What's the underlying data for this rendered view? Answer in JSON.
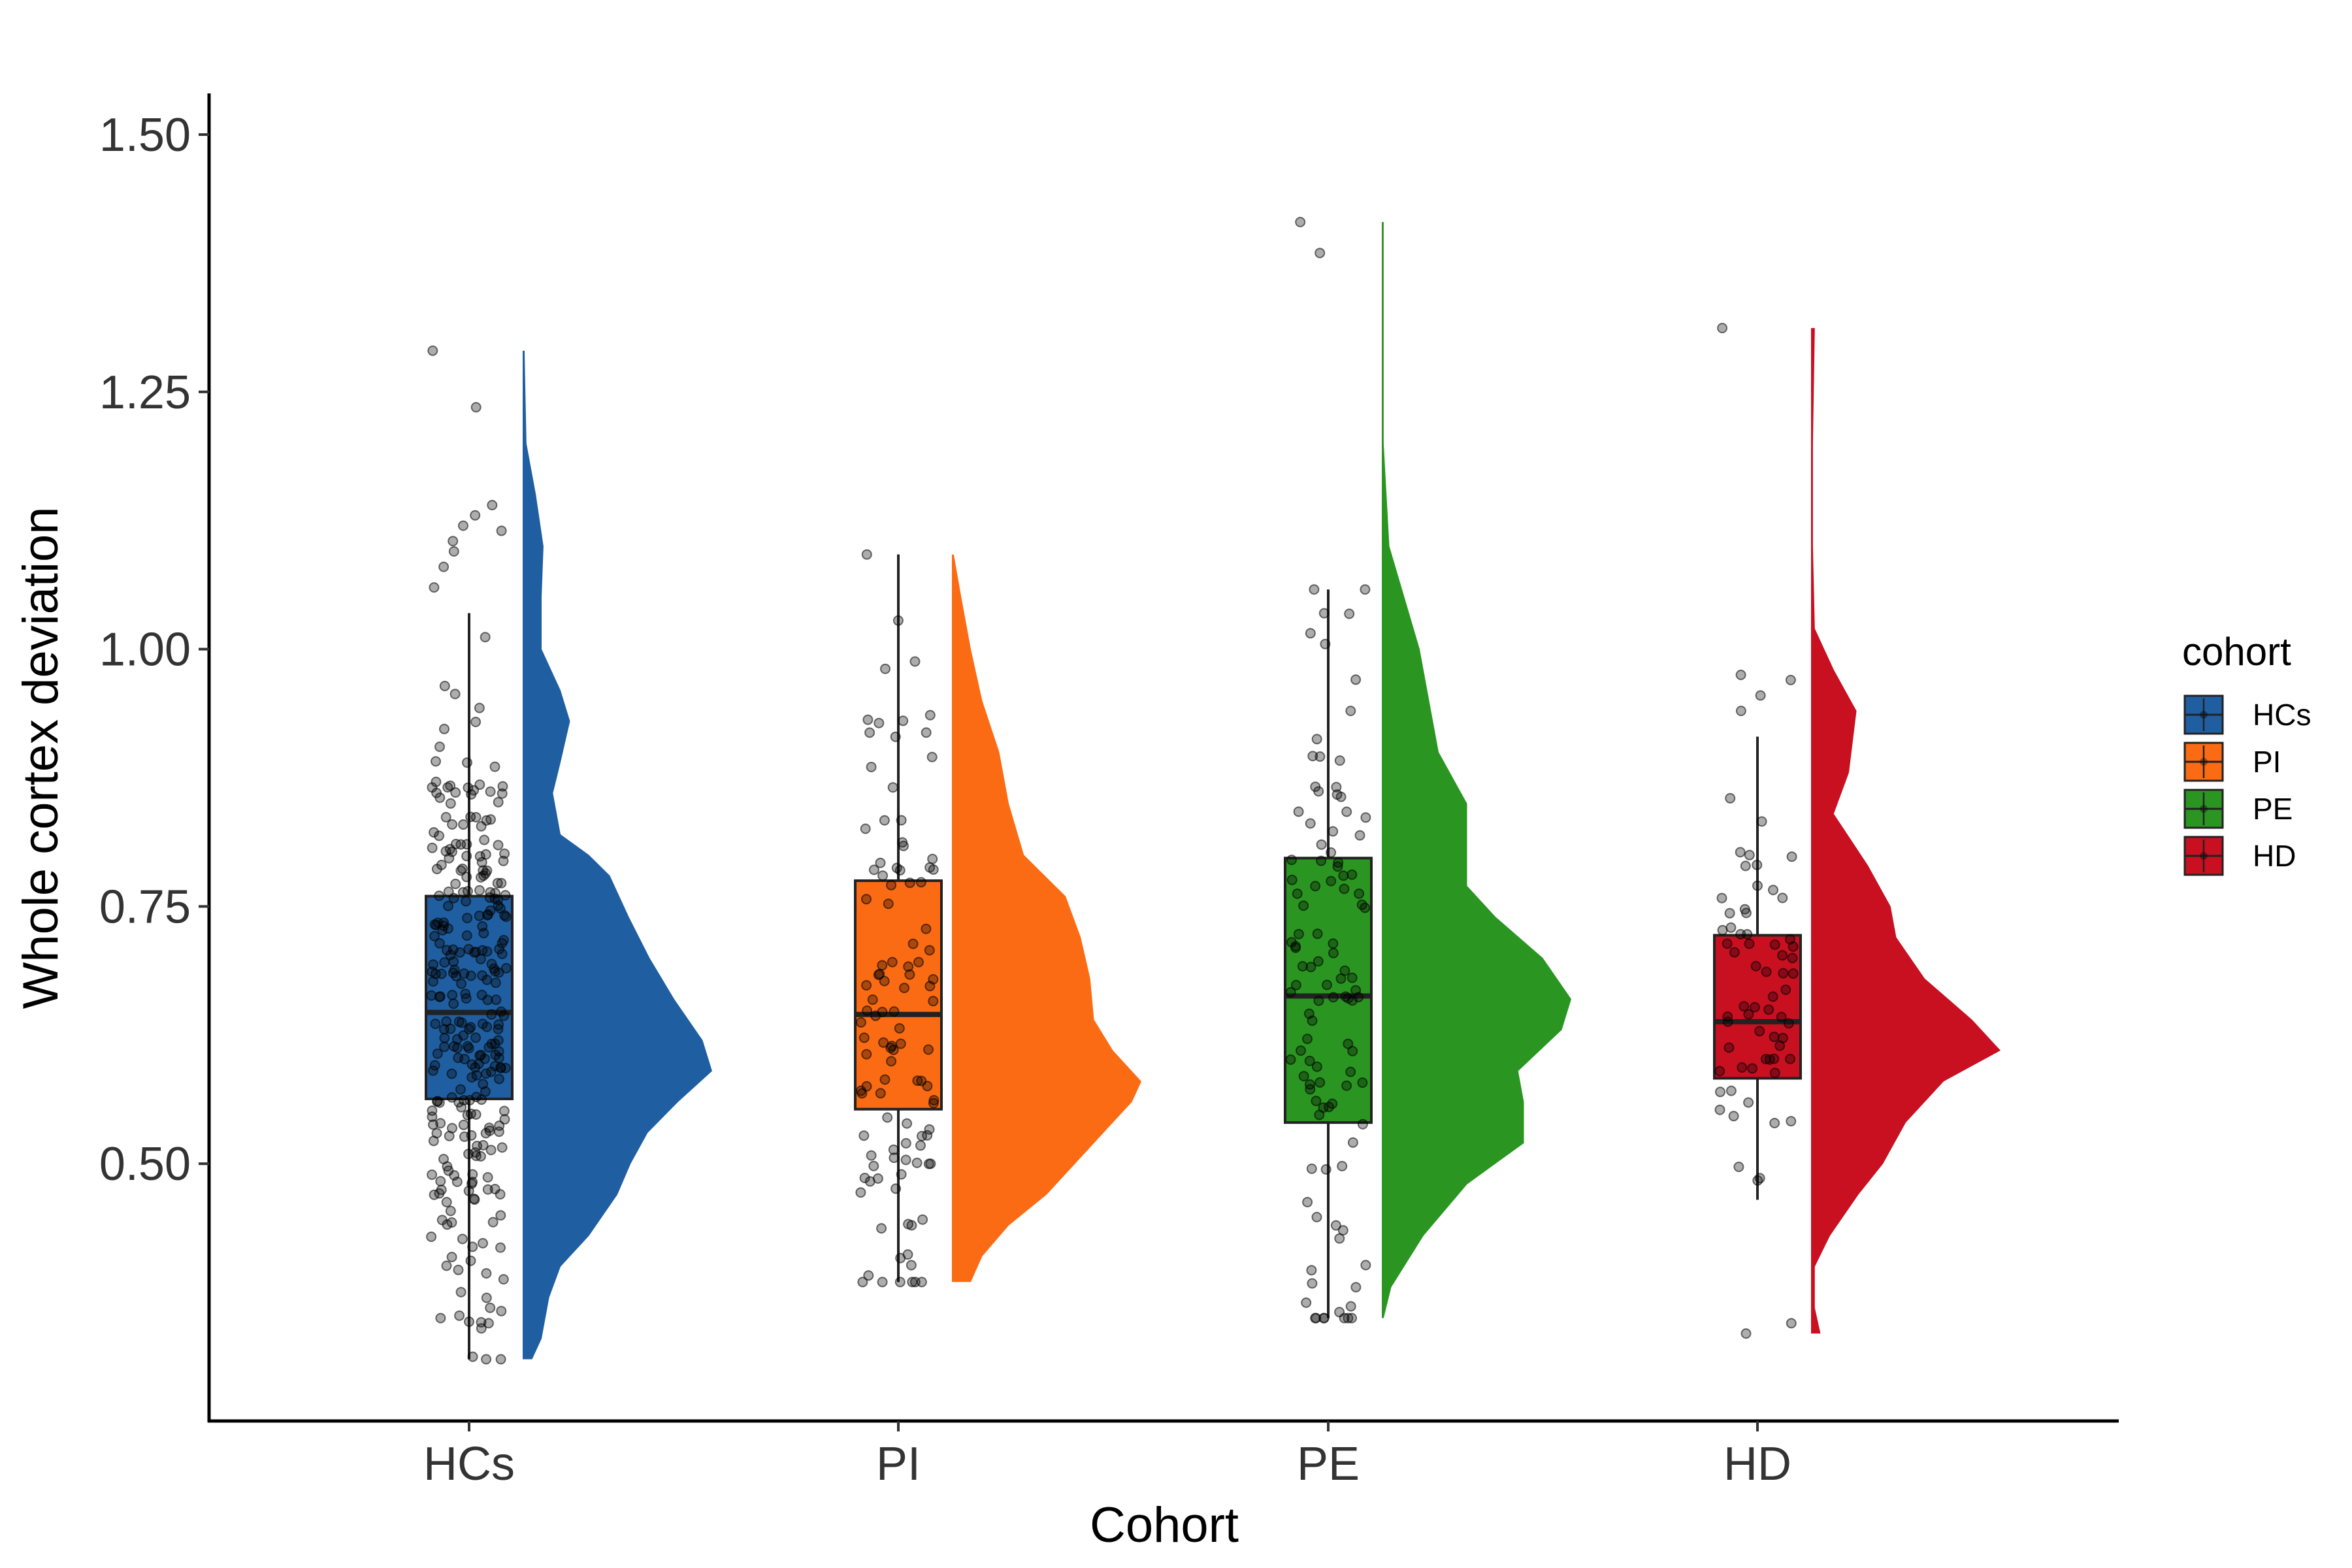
{
  "chart_data": {
    "type": "raincloud",
    "xlabel": "Cohort",
    "ylabel": "Whole cortex deviation",
    "ylim": [
      0.25,
      1.54
    ],
    "yticks": [
      "0.50",
      "0.75",
      "1.00",
      "1.25",
      "1.50"
    ],
    "ytick_values": [
      0.5,
      0.75,
      1.0,
      1.25,
      1.5
    ],
    "categories": [
      "HCs",
      "PI",
      "PE",
      "HD"
    ],
    "grid": false,
    "legend": {
      "title": "cohort",
      "position": "right",
      "entries": [
        "HCs",
        "PI",
        "PE",
        "HD"
      ]
    },
    "colors": {
      "HCs": "#1f5fa1",
      "PI": "#fb6b13",
      "PE": "#2a9621",
      "HD": "#c81021"
    },
    "series": [
      {
        "name": "HCs",
        "box": {
          "whisker_low": 0.31,
          "q1": 0.563,
          "median": 0.647,
          "q3": 0.76,
          "whisker_high": 1.035
        },
        "range": [
          0.31,
          1.29
        ],
        "n_points": 300,
        "outliers": [
          1.29,
          1.235,
          1.14,
          1.13,
          1.12,
          1.115,
          1.105,
          1.095,
          1.08,
          1.06,
          0.36,
          0.35,
          0.345,
          0.34,
          0.31
        ],
        "density": [
          [
            0.31,
            0.05
          ],
          [
            0.33,
            0.1
          ],
          [
            0.37,
            0.14
          ],
          [
            0.4,
            0.2
          ],
          [
            0.43,
            0.35
          ],
          [
            0.47,
            0.5
          ],
          [
            0.5,
            0.57
          ],
          [
            0.53,
            0.66
          ],
          [
            0.56,
            0.82
          ],
          [
            0.59,
            1.0
          ],
          [
            0.62,
            0.95
          ],
          [
            0.66,
            0.8
          ],
          [
            0.7,
            0.67
          ],
          [
            0.74,
            0.56
          ],
          [
            0.78,
            0.46
          ],
          [
            0.8,
            0.35
          ],
          [
            0.82,
            0.2
          ],
          [
            0.86,
            0.16
          ],
          [
            0.89,
            0.2
          ],
          [
            0.93,
            0.25
          ],
          [
            0.96,
            0.2
          ],
          [
            1.0,
            0.1
          ],
          [
            1.05,
            0.1
          ],
          [
            1.1,
            0.11
          ],
          [
            1.15,
            0.07
          ],
          [
            1.2,
            0.02
          ],
          [
            1.29,
            0.01
          ]
        ]
      },
      {
        "name": "PI",
        "box": {
          "whisker_low": 0.385,
          "q1": 0.553,
          "median": 0.645,
          "q3": 0.775,
          "whisker_high": 1.092
        },
        "range": [
          0.385,
          1.092
        ],
        "n_points": 110,
        "outliers": [],
        "density": [
          [
            0.385,
            0.1
          ],
          [
            0.41,
            0.16
          ],
          [
            0.44,
            0.3
          ],
          [
            0.47,
            0.5
          ],
          [
            0.5,
            0.65
          ],
          [
            0.53,
            0.8
          ],
          [
            0.56,
            0.95
          ],
          [
            0.58,
            1.0
          ],
          [
            0.61,
            0.85
          ],
          [
            0.64,
            0.75
          ],
          [
            0.68,
            0.73
          ],
          [
            0.72,
            0.68
          ],
          [
            0.76,
            0.6
          ],
          [
            0.8,
            0.38
          ],
          [
            0.85,
            0.3
          ],
          [
            0.9,
            0.25
          ],
          [
            0.95,
            0.16
          ],
          [
            1.0,
            0.1
          ],
          [
            1.05,
            0.05
          ],
          [
            1.092,
            0.01
          ]
        ]
      },
      {
        "name": "PE",
        "box": {
          "whisker_low": 0.35,
          "q1": 0.54,
          "median": 0.663,
          "q3": 0.797,
          "whisker_high": 1.058
        },
        "range": [
          0.35,
          1.415
        ],
        "n_points": 110,
        "outliers": [
          1.415,
          1.385,
          0.38,
          0.365,
          0.35
        ],
        "density": [
          [
            0.35,
            0.01
          ],
          [
            0.38,
            0.05
          ],
          [
            0.43,
            0.22
          ],
          [
            0.48,
            0.45
          ],
          [
            0.52,
            0.75
          ],
          [
            0.56,
            0.75
          ],
          [
            0.59,
            0.72
          ],
          [
            0.63,
            0.95
          ],
          [
            0.66,
            1.0
          ],
          [
            0.7,
            0.85
          ],
          [
            0.74,
            0.6
          ],
          [
            0.77,
            0.45
          ],
          [
            0.8,
            0.45
          ],
          [
            0.85,
            0.45
          ],
          [
            0.9,
            0.3
          ],
          [
            0.95,
            0.25
          ],
          [
            1.0,
            0.2
          ],
          [
            1.05,
            0.12
          ],
          [
            1.1,
            0.04
          ],
          [
            1.2,
            0.01
          ],
          [
            1.3,
            0.01
          ],
          [
            1.415,
            0.01
          ]
        ]
      },
      {
        "name": "HD",
        "box": {
          "whisker_low": 0.465,
          "q1": 0.583,
          "median": 0.638,
          "q3": 0.722,
          "whisker_high": 0.915
        },
        "range": [
          0.335,
          1.312
        ],
        "n_points": 70,
        "outliers": [
          0.975,
          0.97,
          0.955,
          0.94,
          0.345,
          0.335,
          1.312
        ],
        "density": [
          [
            0.335,
            0.05
          ],
          [
            0.36,
            0.02
          ],
          [
            0.4,
            0.02
          ],
          [
            0.43,
            0.1
          ],
          [
            0.47,
            0.25
          ],
          [
            0.5,
            0.38
          ],
          [
            0.54,
            0.5
          ],
          [
            0.58,
            0.7
          ],
          [
            0.61,
            1.0
          ],
          [
            0.64,
            0.85
          ],
          [
            0.68,
            0.6
          ],
          [
            0.72,
            0.45
          ],
          [
            0.75,
            0.42
          ],
          [
            0.79,
            0.3
          ],
          [
            0.84,
            0.12
          ],
          [
            0.88,
            0.2
          ],
          [
            0.94,
            0.24
          ],
          [
            0.98,
            0.12
          ],
          [
            1.02,
            0.02
          ],
          [
            1.1,
            0.01
          ],
          [
            1.2,
            0.01
          ],
          [
            1.312,
            0.02
          ]
        ]
      }
    ]
  }
}
